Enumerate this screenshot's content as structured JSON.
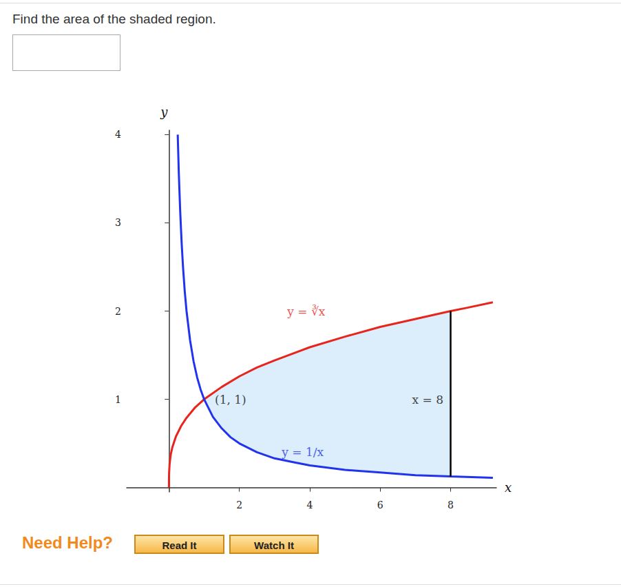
{
  "page": {
    "question": "Find the area of the shaded region.",
    "help": "Need Help?",
    "buttons": [
      "Read It",
      "Watch It"
    ]
  },
  "chart_data": {
    "type": "line",
    "x_label": "x",
    "y_label": "y",
    "xlim": [
      -1.2,
      9.3
    ],
    "ylim": [
      -0.05,
      4.05
    ],
    "xticks": [
      2,
      4,
      6,
      8
    ],
    "yticks": [
      1,
      2,
      3,
      4
    ],
    "grid": false,
    "series": [
      {
        "color": "#e8241c",
        "line_style": "solid",
        "x": [
          0,
          0.001,
          0.005,
          0.02,
          0.05,
          0.1,
          0.2,
          0.35,
          0.5,
          0.75,
          1,
          1.5,
          2,
          2.5,
          3,
          4,
          5,
          6,
          7,
          8,
          8.5,
          9.2
        ],
        "values": [
          0,
          0.1,
          0.17,
          0.27,
          0.37,
          0.46,
          0.58,
          0.7,
          0.79,
          0.91,
          1,
          1.14,
          1.26,
          1.36,
          1.44,
          1.59,
          1.71,
          1.82,
          1.91,
          2,
          2.04,
          2.1
        ]
      },
      {
        "color": "#2233ee",
        "line_style": "solid",
        "x": [
          0.25,
          0.28,
          0.32,
          0.36,
          0.4,
          0.45,
          0.5,
          0.6,
          0.7,
          0.8,
          0.9,
          1,
          1.25,
          1.5,
          1.75,
          2,
          2.5,
          3,
          3.5,
          4,
          5,
          6,
          7,
          8,
          9.2
        ],
        "values": [
          4,
          3.57,
          3.13,
          2.78,
          2.5,
          2.22,
          2,
          1.67,
          1.43,
          1.25,
          1.11,
          1,
          0.8,
          0.67,
          0.57,
          0.5,
          0.4,
          0.33,
          0.29,
          0.25,
          0.2,
          0.17,
          0.14,
          0.125,
          0.11
        ]
      }
    ],
    "segments": [
      {
        "color": "#000000",
        "x": [
          8,
          8
        ],
        "values": [
          0.125,
          2
        ]
      }
    ],
    "shaded_region": {
      "x": [
        1,
        8
      ],
      "color": "#dcedfc"
    },
    "annotations": [
      {
        "text": "y = ∛x",
        "x": 3.9,
        "y": 2.0,
        "color": "#e8241c"
      },
      {
        "text": "y = 1/x",
        "x": 3.8,
        "y": 0.4,
        "color": "#2233ee"
      },
      {
        "text": "(1, 1)",
        "x": 1.75,
        "y": 1.0,
        "color": "#111111"
      },
      {
        "text": "x = 8",
        "x": 7.35,
        "y": 1.0,
        "color": "#111111"
      }
    ]
  }
}
